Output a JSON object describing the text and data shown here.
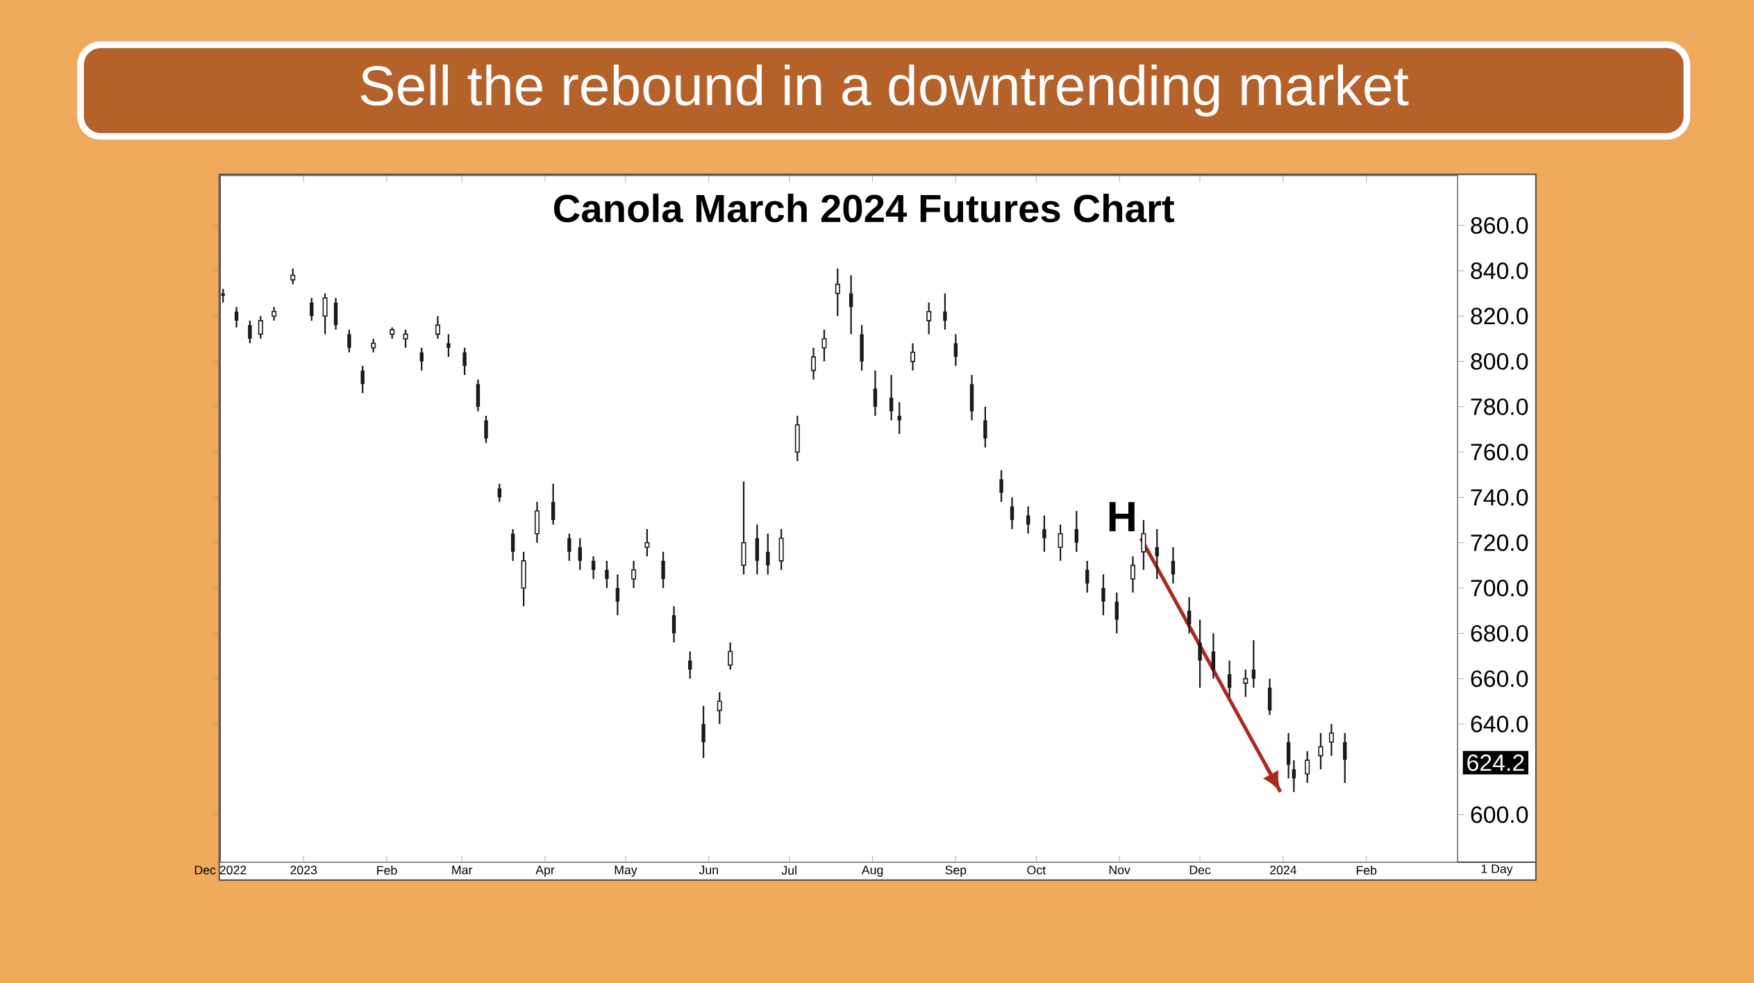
{
  "chart_data": {
    "type": "candlestick",
    "title": "Sell the rebound in a downtrending market",
    "subtitle": "Canola March 2024 Futures Chart",
    "annotations": [
      "H",
      "624.2",
      "1 Day"
    ],
    "color": "#1a1a1a",
    "x": [
      "2022-12-02",
      "2022-12-07",
      "2022-12-12",
      "2022-12-16",
      "2022-12-21",
      "2022-12-28",
      "2023-01-04",
      "2023-01-09",
      "2023-01-13",
      "2023-01-18",
      "2023-01-23",
      "2023-01-27",
      "2023-02-03",
      "2023-02-08",
      "2023-02-14",
      "2023-02-20",
      "2023-02-24",
      "2023-03-02",
      "2023-03-07",
      "2023-03-10",
      "2023-03-15",
      "2023-03-20",
      "2023-03-24",
      "2023-03-29",
      "2023-04-04",
      "2023-04-10",
      "2023-04-14",
      "2023-04-19",
      "2023-04-24",
      "2023-04-28",
      "2023-05-04",
      "2023-05-09",
      "2023-05-15",
      "2023-05-19",
      "2023-05-25",
      "2023-05-30",
      "2023-06-05",
      "2023-06-09",
      "2023-06-14",
      "2023-06-19",
      "2023-06-23",
      "2023-06-28",
      "2023-07-04",
      "2023-07-10",
      "2023-07-14",
      "2023-07-19",
      "2023-07-24",
      "2023-07-28",
      "2023-08-02",
      "2023-08-08",
      "2023-08-11",
      "2023-08-16",
      "2023-08-22",
      "2023-08-28",
      "2023-09-01",
      "2023-09-07",
      "2023-09-12",
      "2023-09-18",
      "2023-09-22",
      "2023-09-28",
      "2023-10-04",
      "2023-10-10",
      "2023-10-16",
      "2023-10-20",
      "2023-10-26",
      "2023-10-31",
      "2023-11-06",
      "2023-11-10",
      "2023-11-15",
      "2023-11-21",
      "2023-11-27",
      "2023-12-01",
      "2023-12-06",
      "2023-12-12",
      "2023-12-18",
      "2023-12-21",
      "2023-12-27",
      "2024-01-03",
      "2024-01-05",
      "2024-01-10",
      "2024-01-15",
      "2024-01-19",
      "2024-01-24"
    ],
    "ohlc": [
      [
        830,
        832,
        826,
        829
      ],
      [
        822,
        824,
        815,
        818
      ],
      [
        816,
        818,
        808,
        810
      ],
      [
        812,
        820,
        810,
        818
      ],
      [
        820,
        824,
        818,
        822
      ],
      [
        836,
        841,
        834,
        838
      ],
      [
        826,
        828,
        818,
        820
      ],
      [
        820,
        830,
        812,
        828
      ],
      [
        826,
        828,
        814,
        816
      ],
      [
        812,
        814,
        804,
        806
      ],
      [
        796,
        798,
        786,
        790
      ],
      [
        806,
        810,
        804,
        808
      ],
      [
        812,
        815,
        810,
        814
      ],
      [
        810,
        814,
        806,
        812
      ],
      [
        804,
        806,
        796,
        800
      ],
      [
        812,
        820,
        810,
        816
      ],
      [
        808,
        812,
        802,
        806
      ],
      [
        804,
        806,
        794,
        798
      ],
      [
        790,
        792,
        778,
        780
      ],
      [
        774,
        776,
        764,
        766
      ],
      [
        744,
        746,
        738,
        740
      ],
      [
        724,
        726,
        712,
        716
      ],
      [
        700,
        716,
        692,
        712
      ],
      [
        724,
        738,
        720,
        734
      ],
      [
        738,
        746,
        728,
        730
      ],
      [
        722,
        724,
        712,
        716
      ],
      [
        718,
        722,
        708,
        712
      ],
      [
        712,
        714,
        704,
        708
      ],
      [
        708,
        712,
        700,
        704
      ],
      [
        700,
        706,
        688,
        694
      ],
      [
        704,
        712,
        700,
        708
      ],
      [
        718,
        726,
        714,
        720
      ],
      [
        712,
        716,
        700,
        704
      ],
      [
        688,
        692,
        676,
        680
      ],
      [
        668,
        672,
        660,
        664
      ],
      [
        640,
        648,
        625,
        632
      ],
      [
        646,
        654,
        640,
        650
      ],
      [
        666,
        676,
        664,
        672
      ],
      [
        710,
        747,
        706,
        720
      ],
      [
        722,
        728,
        706,
        712
      ],
      [
        716,
        724,
        706,
        710
      ],
      [
        712,
        726,
        708,
        722
      ],
      [
        760,
        776,
        756,
        772
      ],
      [
        796,
        806,
        792,
        802
      ],
      [
        806,
        814,
        800,
        810
      ],
      [
        830,
        841,
        820,
        834
      ],
      [
        830,
        838,
        812,
        824
      ],
      [
        812,
        816,
        796,
        800
      ],
      [
        788,
        796,
        776,
        780
      ],
      [
        784,
        794,
        774,
        778
      ],
      [
        776,
        782,
        768,
        774
      ],
      [
        800,
        808,
        796,
        804
      ],
      [
        818,
        826,
        812,
        822
      ],
      [
        822,
        830,
        814,
        818
      ],
      [
        808,
        812,
        798,
        802
      ],
      [
        790,
        794,
        774,
        778
      ],
      [
        774,
        780,
        762,
        766
      ],
      [
        748,
        752,
        738,
        742
      ],
      [
        736,
        740,
        726,
        730
      ],
      [
        732,
        736,
        724,
        728
      ],
      [
        726,
        732,
        716,
        722
      ],
      [
        718,
        728,
        712,
        724
      ],
      [
        726,
        734,
        716,
        720
      ],
      [
        708,
        712,
        698,
        702
      ],
      [
        700,
        706,
        688,
        694
      ],
      [
        694,
        698,
        680,
        686
      ],
      [
        704,
        714,
        698,
        710
      ],
      [
        716,
        730,
        708,
        724
      ],
      [
        718,
        726,
        704,
        714
      ],
      [
        712,
        718,
        702,
        706
      ],
      [
        690,
        696,
        680,
        684
      ],
      [
        676,
        686,
        656,
        668
      ],
      [
        672,
        680,
        660,
        664
      ],
      [
        662,
        668,
        652,
        656
      ],
      [
        658,
        664,
        652,
        660
      ],
      [
        664,
        677,
        656,
        660
      ],
      [
        656,
        660,
        644,
        646
      ],
      [
        632,
        636,
        616,
        622
      ],
      [
        620,
        624,
        610,
        616
      ],
      [
        618,
        628,
        614,
        624
      ],
      [
        626,
        636,
        620,
        630
      ],
      [
        632,
        640,
        626,
        636
      ],
      [
        632,
        636,
        614,
        624.2
      ]
    ],
    "series": [
      {
        "type": "line",
        "color": "#aa2a1e",
        "x": [
          "2023-11-09",
          "2023-12-31"
        ],
        "values": [
          722,
          610
        ]
      }
    ],
    "xlim": [
      "2022-12-01",
      "2024-03-06"
    ],
    "xticks": [
      {
        "value": "2022-12-01",
        "label": "Dec 2022"
      },
      {
        "value": "2023-01-01",
        "label": "2023"
      },
      {
        "value": "2023-02-01",
        "label": "Feb"
      },
      {
        "value": "2023-03-01",
        "label": "Mar"
      },
      {
        "value": "2023-04-01",
        "label": "Apr"
      },
      {
        "value": "2023-05-01",
        "label": "May"
      },
      {
        "value": "2023-06-01",
        "label": "Jun"
      },
      {
        "value": "2023-07-01",
        "label": "Jul"
      },
      {
        "value": "2023-08-01",
        "label": "Aug"
      },
      {
        "value": "2023-09-01",
        "label": "Sep"
      },
      {
        "value": "2023-10-01",
        "label": "Oct"
      },
      {
        "value": "2023-11-01",
        "label": "Nov"
      },
      {
        "value": "2023-12-01",
        "label": "Dec"
      },
      {
        "value": "2024-01-01",
        "label": "2024"
      },
      {
        "value": "2024-02-01",
        "label": "Feb"
      }
    ],
    "ylim": [
      579,
      882
    ],
    "yticks": [
      {
        "value": 600,
        "label": "600.0"
      },
      {
        "value": 640,
        "label": "640.0"
      },
      {
        "value": 660,
        "label": "660.0"
      },
      {
        "value": 680,
        "label": "680.0"
      },
      {
        "value": 700,
        "label": "700.0"
      },
      {
        "value": 720,
        "label": "720.0"
      },
      {
        "value": 740,
        "label": "740.0"
      },
      {
        "value": 760,
        "label": "760.0"
      },
      {
        "value": 780,
        "label": "780.0"
      },
      {
        "value": 800,
        "label": "800.0"
      },
      {
        "value": 820,
        "label": "820.0"
      },
      {
        "value": 840,
        "label": "840.0"
      },
      {
        "value": 860,
        "label": "860.0"
      }
    ]
  }
}
